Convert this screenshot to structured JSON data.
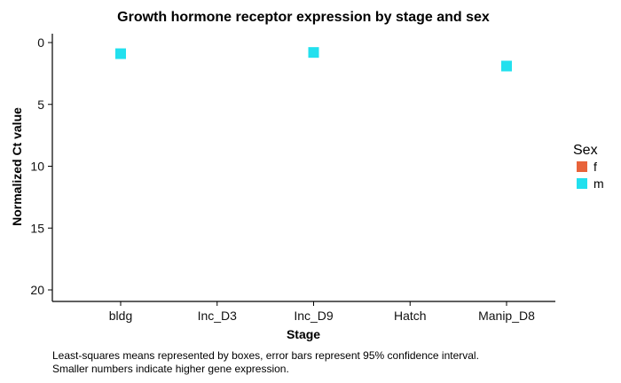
{
  "chart_data": {
    "type": "scatter",
    "title": "Growth hormone receptor expression by stage and sex",
    "xlabel": "Stage",
    "ylabel": "Normalized Ct value",
    "categories": [
      "bldg",
      "Inc_D3",
      "Inc_D9",
      "Hatch",
      "Manip_D8"
    ],
    "y_reversed": true,
    "ylim": [
      0,
      20
    ],
    "yticks": [
      "0",
      "5",
      "10",
      "15",
      "20"
    ],
    "grid": false,
    "legend": {
      "title": "Sex",
      "placement": "right",
      "entries": [
        {
          "label": "f",
          "color": "#E8633A"
        },
        {
          "label": "m",
          "color": "#22E0EE"
        }
      ]
    },
    "series": [
      {
        "name": "m",
        "color": "#22E0EE",
        "points": [
          {
            "x": "bldg",
            "y": 0.9
          },
          {
            "x": "Inc_D9",
            "y": 0.8
          },
          {
            "x": "Manip_D8",
            "y": 1.9
          }
        ]
      },
      {
        "name": "f",
        "color": "#E8633A",
        "points": []
      }
    ],
    "caption_lines": [
      "Least-squares means represented by boxes, error bars represent 95% confidence interval.",
      "Smaller numbers indicate higher gene expression."
    ]
  }
}
